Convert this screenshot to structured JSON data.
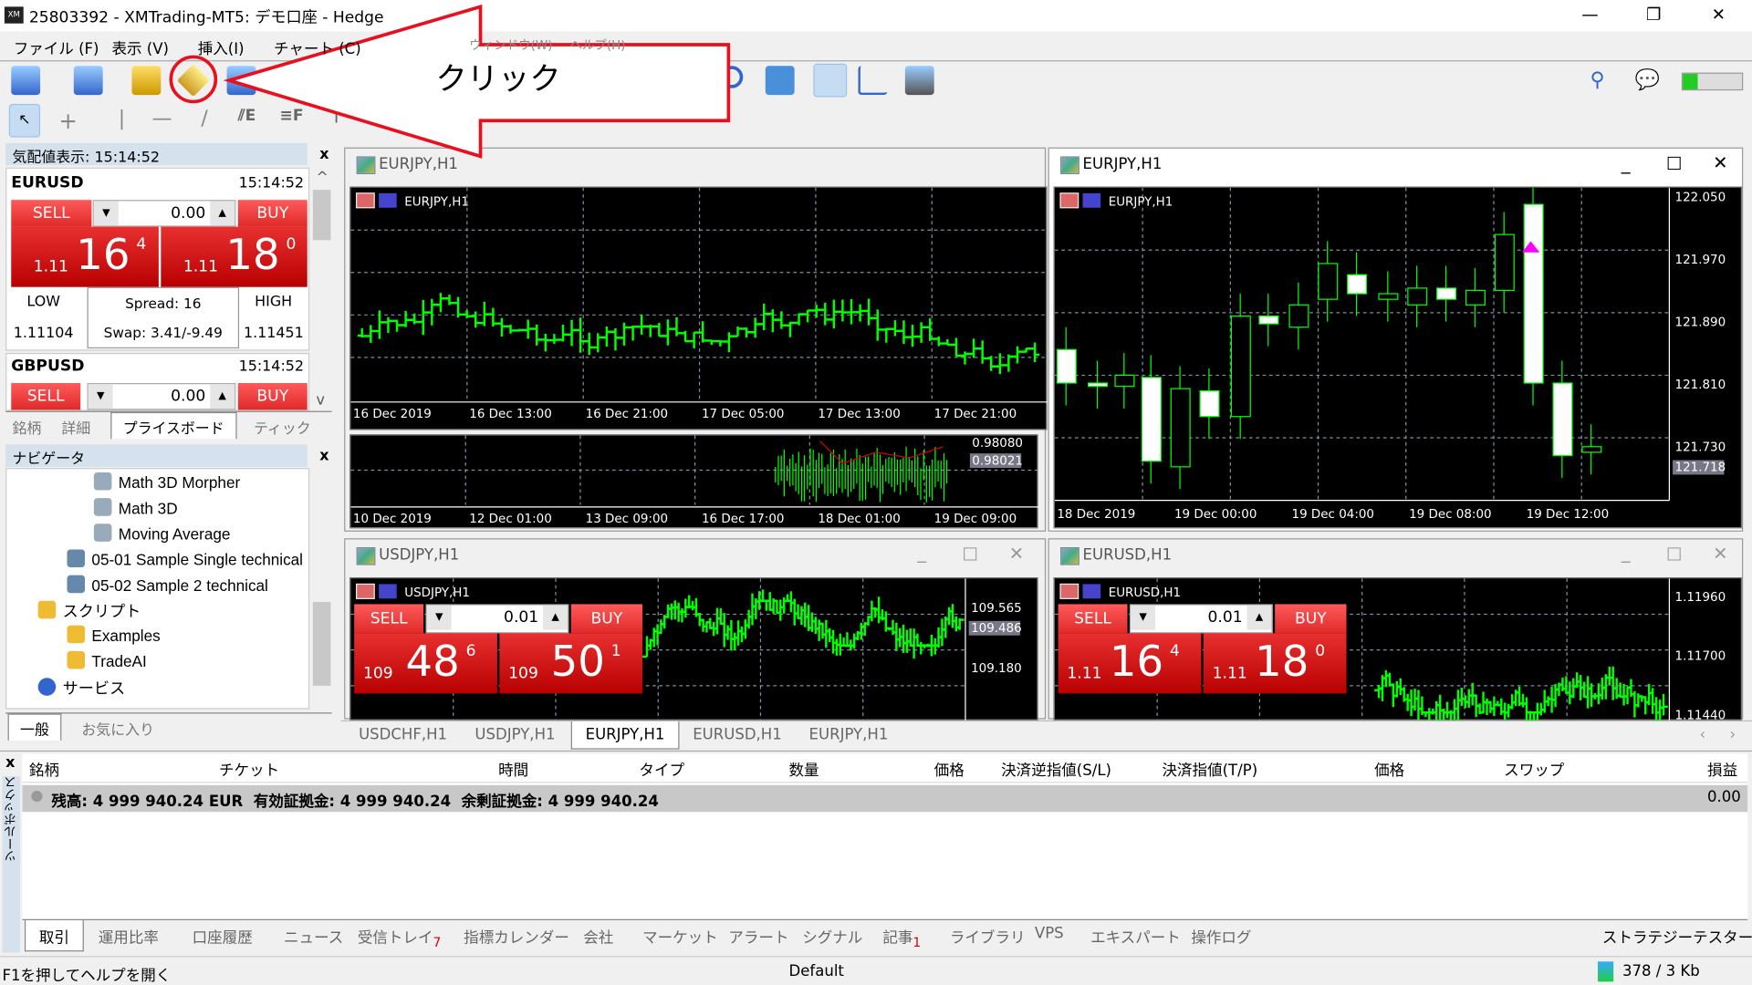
{
  "window": {
    "title": "25803392 - XMTrading-MT5: デモ口座 - Hedge",
    "logo": "XM",
    "minimize": "—",
    "maximize": "❐",
    "close": "✕"
  },
  "menu": [
    "ファイル (F)",
    "表示 (V)",
    "挿入(I)",
    "チャート (C)",
    "ウィンドウ(W)",
    "ヘルプ(H)"
  ],
  "callout": {
    "text": "クリック",
    "color": "#e8101e"
  },
  "market_watch": {
    "title": "気配値表示: 15:14:52",
    "close": "x",
    "symbols": [
      {
        "name": "EURUSD",
        "time": "15:14:52",
        "sell": "SELL",
        "buy": "BUY",
        "volume": "0.00",
        "bid_prefix": "1.11",
        "bid_big": "16",
        "bid_sup": "4",
        "ask_prefix": "1.11",
        "ask_big": "18",
        "ask_sup": "0",
        "low_label": "LOW",
        "low": "1.11104",
        "spread": "Spread: 16",
        "swap": "Swap: 3.41/-9.49",
        "high_label": "HIGH",
        "high": "1.11451"
      },
      {
        "name": "GBPUSD",
        "time": "15:14:52",
        "sell": "SELL",
        "buy": "BUY",
        "volume": "0.00"
      }
    ],
    "tabs": [
      "銘柄",
      "詳細",
      "プライスボード",
      "ティック"
    ],
    "active_tab": "プライスボード"
  },
  "navigator": {
    "title": "ナビゲータ",
    "close": "x",
    "items": [
      "Math 3D Morpher",
      "Math 3D",
      "Moving Average",
      "05-01 Sample Single technical",
      "05-02 Sample 2 technical",
      "スクリプト",
      "Examples",
      "TradeAI",
      "サービス"
    ],
    "tabs": [
      "一般",
      "お気に入り"
    ]
  },
  "charts": [
    {
      "title": "EURJPY,H1",
      "label": "EURJPY,H1",
      "xticks": [
        "16 Dec 2019",
        "16 Dec 13:00",
        "16 Dec 21:00",
        "17 Dec 05:00",
        "17 Dec 13:00",
        "17 Dec 21:00"
      ],
      "sub": {
        "xticks": [
          "10 Dec 2019",
          "12 Dec 01:00",
          "13 Dec 09:00",
          "16 Dec 17:00",
          "18 Dec 01:00",
          "19 Dec 09:00"
        ],
        "yticks": [
          "0.98080"
        ],
        "current": "0.98021"
      }
    },
    {
      "title": "EURJPY,H1",
      "label": "EURJPY,H1",
      "yticks": [
        "122.050",
        "121.970",
        "121.890",
        "121.810",
        "121.730"
      ],
      "current": "121.718",
      "xticks": [
        "18 Dec 2019",
        "19 Dec 00:00",
        "19 Dec 04:00",
        "19 Dec 08:00",
        "19 Dec 12:00"
      ]
    },
    {
      "title": "USDJPY,H1",
      "label": "USDJPY,H1",
      "sell": "SELL",
      "buy": "BUY",
      "volume": "0.01",
      "bid_prefix": "109",
      "bid_big": "48",
      "bid_sup": "6",
      "ask_prefix": "109",
      "ask_big": "50",
      "ask_sup": "1",
      "yticks": [
        "109.565",
        "109.180"
      ],
      "current": "109.486"
    },
    {
      "title": "EURUSD,H1",
      "label": "EURUSD,H1",
      "sell": "SELL",
      "buy": "BUY",
      "volume": "0.01",
      "bid_prefix": "1.11",
      "bid_big": "16",
      "bid_sup": "4",
      "ask_prefix": "1.11",
      "ask_big": "18",
      "ask_sup": "0",
      "yticks": [
        "1.11960",
        "1.11700",
        "1.11440"
      ]
    }
  ],
  "chart_tabs": [
    "USDCHF,H1",
    "USDJPY,H1",
    "EURJPY,H1",
    "EURUSD,H1",
    "EURJPY,H1"
  ],
  "active_chart_tab": 2,
  "toolbox": {
    "side_label": "ツールボックス",
    "close": "x",
    "columns": [
      "銘柄",
      "チケット",
      "時間",
      "タイプ",
      "数量",
      "価格",
      "決済逆指値(S/L)",
      "決済指値(T/P)",
      "価格",
      "スワップ",
      "損益"
    ],
    "balance_row": "残高: 4 999 940.24 EUR  有効証拠金: 4 999 940.24  余剰証拠金: 4 999 940.24",
    "profit": "0.00",
    "tabs": [
      "取引",
      "運用比率",
      "口座履歴",
      "ニュース",
      "受信トレイ",
      "指標カレンダー",
      "会社",
      "マーケット",
      "アラート",
      "シグナル",
      "記事",
      "ライブラリ",
      "VPS",
      "エキスパート",
      "操作ログ"
    ],
    "inbox_badge": "7",
    "articles_badge": "1",
    "strategy_tester": "ストラテジーテスター"
  },
  "status": {
    "help": "F1を押してヘルプを開く",
    "profile": "Default",
    "traffic": "378 / 3 Kb"
  },
  "colors": {
    "bull": "#00ff00",
    "sell_red": "#e02a2a",
    "panel_header": "#d5e1ec"
  }
}
